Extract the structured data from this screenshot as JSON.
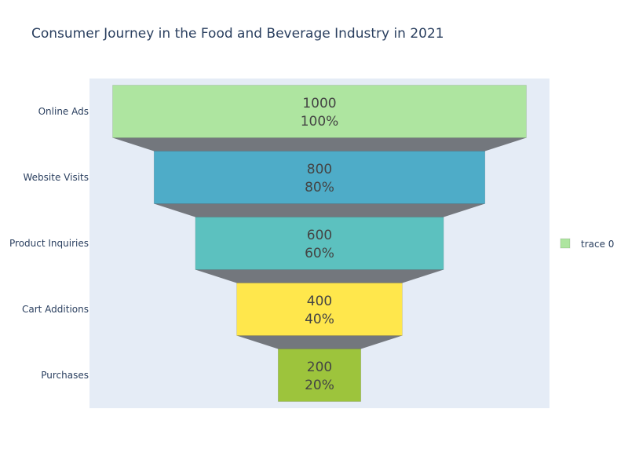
{
  "chart_data": {
    "type": "funnel",
    "title": "Consumer Journey in the Food and Beverage Industry in 2021",
    "categories": [
      "Online Ads",
      "Website Visits",
      "Product Inquiries",
      "Cart Additions",
      "Purchases"
    ],
    "values": [
      1000,
      800,
      600,
      400,
      200
    ],
    "percent_initial": [
      "100%",
      "80%",
      "60%",
      "40%",
      "20%"
    ],
    "colors": [
      "#aee5a0",
      "#4eacc8",
      "#5cc1bf",
      "#ffe74c",
      "#9dc43c"
    ],
    "connector_color": "#73777d",
    "plot_background": "#e5ecf6",
    "series": [
      {
        "name": "trace 0",
        "values": [
          1000,
          800,
          600,
          400,
          200
        ]
      }
    ],
    "legend": {
      "placement": "right",
      "entries": [
        "trace 0"
      ]
    }
  }
}
